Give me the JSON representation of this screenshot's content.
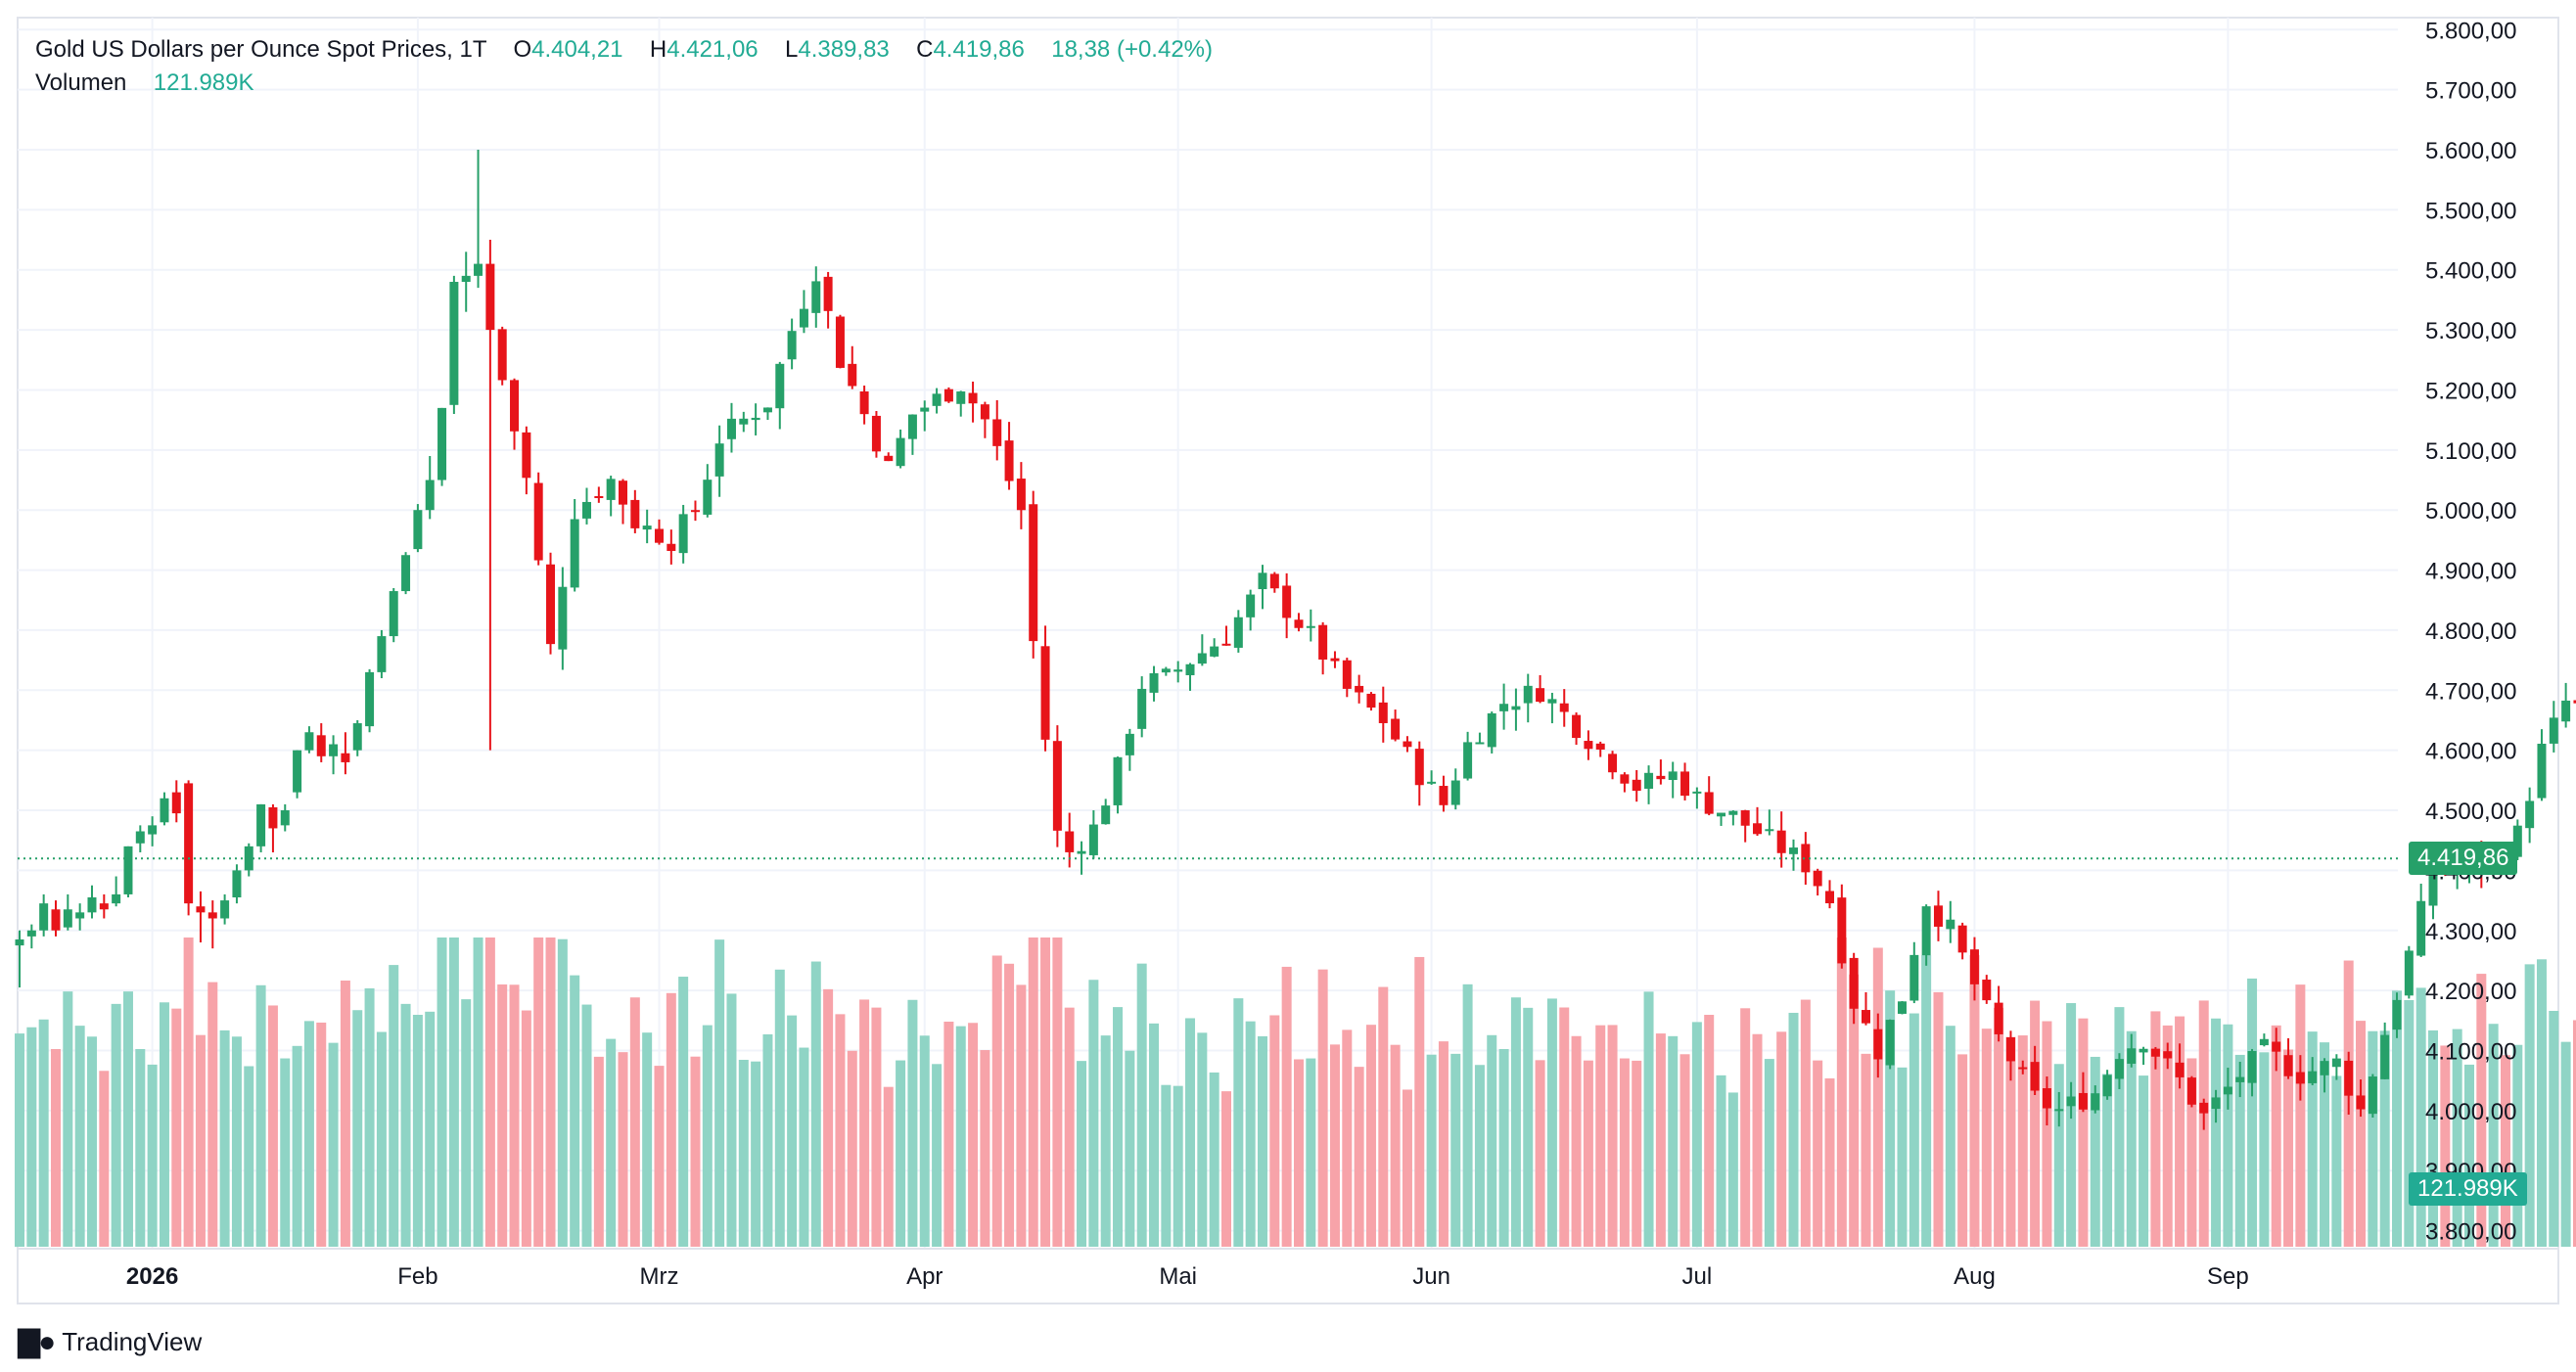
{
  "symbol_label": "Gold US Dollars per Ounce Spot Prices, 1T",
  "ohlc": {
    "o_label": "O",
    "o_value": "4.404,21",
    "h_label": "H",
    "h_value": "4.421,06",
    "l_label": "L",
    "l_value": "4.389,83",
    "c_label": "C",
    "c_value": "4.419,86",
    "change": "18,38 (+0.42%)"
  },
  "volume_label": "Volumen",
  "volume_value": "121.989K",
  "last_price_badge": "4.419,86",
  "last_volume_badge": "121.989K",
  "brand": "TradingView",
  "colors": {
    "up": "#26a069",
    "down": "#e7141a",
    "vol_up": "#8fd4c5",
    "vol_down": "#f7a3a9",
    "price_badge": "#26a069",
    "volume_badge": "#22ab94",
    "grid": "#f0f3fa",
    "text": "#131722"
  },
  "chart_data": {
    "type": "candlestick",
    "interval": "1 day",
    "y_axis": {
      "position": "right",
      "min": 3770,
      "max": 5820,
      "tick_values": [
        3800,
        3900,
        4000,
        4100,
        4200,
        4300,
        4400,
        4500,
        4600,
        4700,
        4800,
        4900,
        5000,
        5100,
        5200,
        5300,
        5400,
        5500,
        5600,
        5700,
        5800
      ],
      "tick_labels": [
        "3.800,00",
        "3.900,00",
        "4.000,00",
        "4.100,00",
        "4.200,00",
        "4.300,00",
        "4.400,00",
        "4.500,00",
        "4.600,00",
        "4.700,00",
        "4.800,00",
        "4.900,00",
        "5.000,00",
        "5.100,00",
        "5.200,00",
        "5.300,00",
        "5.400,00",
        "5.500,00",
        "5.600,00",
        "5.700,00",
        "5.800,00"
      ]
    },
    "x_axis": {
      "labels": [
        {
          "label": "2026",
          "bar_index": 11,
          "bold": true
        },
        {
          "label": "Feb",
          "bar_index": 33,
          "bold": false
        },
        {
          "label": "Mrz",
          "bar_index": 53,
          "bold": false
        },
        {
          "label": "Apr",
          "bar_index": 75,
          "bold": false
        },
        {
          "label": "Mai",
          "bar_index": 96,
          "bold": false
        },
        {
          "label": "Jun",
          "bar_index": 117,
          "bold": false
        },
        {
          "label": "Jul",
          "bar_index": 139,
          "bold": false
        },
        {
          "label": "Aug",
          "bar_index": 162,
          "bold": false
        },
        {
          "label": "Sep",
          "bar_index": 183,
          "bold": false
        }
      ]
    },
    "volume_scale_max": 298000,
    "last_price": 4419.86,
    "grid": true,
    "ohlc": [
      [
        4275,
        4300,
        4205,
        4285
      ],
      [
        4290,
        4310,
        4270,
        4300
      ],
      [
        4300,
        4360,
        4290,
        4345
      ],
      [
        4335,
        4350,
        4290,
        4300
      ],
      [
        4305,
        4360,
        4300,
        4335
      ],
      [
        4320,
        4345,
        4300,
        4330
      ],
      [
        4330,
        4375,
        4320,
        4355
      ],
      [
        4345,
        4360,
        4320,
        4335
      ],
      [
        4345,
        4390,
        4340,
        4360
      ],
      [
        4360,
        4440,
        4355,
        4440
      ],
      [
        4445,
        4475,
        4430,
        4465
      ],
      [
        4460,
        4490,
        4440,
        4475
      ],
      [
        4480,
        4530,
        4475,
        4520
      ],
      [
        4530,
        4550,
        4480,
        4495
      ],
      [
        4545,
        4550,
        4325,
        4345
      ],
      [
        4340,
        4365,
        4280,
        4330
      ],
      [
        4330,
        4350,
        4270,
        4320
      ],
      [
        4320,
        4360,
        4310,
        4350
      ],
      [
        4355,
        4410,
        4345,
        4400
      ],
      [
        4400,
        4445,
        4390,
        4440
      ],
      [
        4440,
        4510,
        4430,
        4510
      ],
      [
        4505,
        4510,
        4430,
        4470
      ],
      [
        4475,
        4510,
        4465,
        4500
      ],
      [
        4530,
        4600,
        4520,
        4600
      ],
      [
        4600,
        4640,
        4595,
        4630
      ],
      [
        4625,
        4645,
        4580,
        4590
      ],
      [
        4590,
        4625,
        4560,
        4610
      ],
      [
        4595,
        4630,
        4560,
        4580
      ],
      [
        4600,
        4650,
        4590,
        4645
      ],
      [
        4640,
        4735,
        4630,
        4730
      ],
      [
        4730,
        4800,
        4720,
        4790
      ],
      [
        4790,
        4870,
        4780,
        4865
      ],
      [
        4865,
        4930,
        4860,
        4925
      ],
      [
        4935,
        5010,
        4930,
        5000
      ],
      [
        5000,
        5090,
        4985,
        5050
      ],
      [
        5050,
        5170,
        5040,
        5170
      ],
      [
        5175,
        5390,
        5160,
        5380
      ],
      [
        5380,
        5430,
        5330,
        5390
      ],
      [
        5390,
        5600,
        5370,
        5410
      ],
      [
        5410,
        5450,
        4600,
        5300
      ]
    ]
  }
}
